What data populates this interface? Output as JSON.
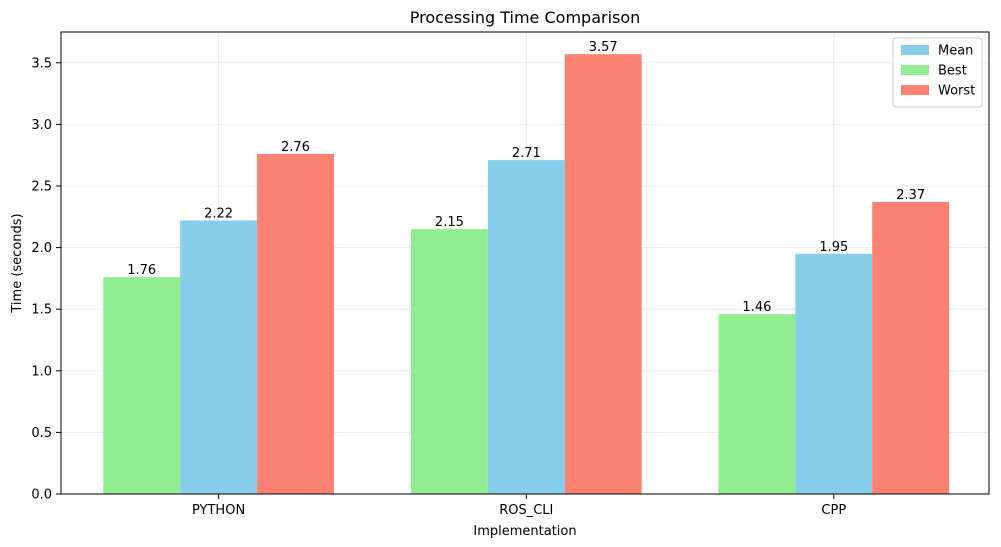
{
  "chart_data": {
    "type": "bar",
    "title": "Processing Time Comparison",
    "xlabel": "Implementation",
    "ylabel": "Time (seconds)",
    "categories": [
      "PYTHON",
      "ROS_CLI",
      "CPP"
    ],
    "series": [
      {
        "name": "Best",
        "color": "#90EE90",
        "values": [
          1.76,
          2.15,
          1.46
        ]
      },
      {
        "name": "Mean",
        "color": "#87CEEB",
        "values": [
          2.22,
          2.71,
          1.95
        ]
      },
      {
        "name": "Worst",
        "color": "#FA8072",
        "values": [
          2.76,
          3.57,
          2.37
        ]
      }
    ],
    "legend_order": [
      "Mean",
      "Best",
      "Worst"
    ],
    "legend_position": "top-right",
    "ylim": [
      0,
      3.75
    ],
    "yticks": [
      0.0,
      0.5,
      1.0,
      1.5,
      2.0,
      2.5,
      3.0,
      3.5
    ],
    "ytick_labels": [
      "0.0",
      "0.5",
      "1.0",
      "1.5",
      "2.0",
      "2.5",
      "3.0",
      "3.5"
    ],
    "grid": true
  }
}
